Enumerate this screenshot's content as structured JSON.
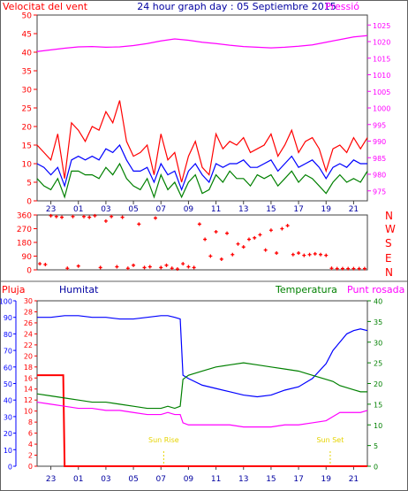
{
  "colors": {
    "frame": "#404040",
    "grid": "#606060",
    "wind": "#ff0000",
    "wind_avg": "#0000ff",
    "wind_alt": "#008000",
    "pressure": "#ff00ff",
    "direction": "#ff0000",
    "rain": "#ff0000",
    "humidity": "#0000ff",
    "temperature": "#008000",
    "dewpoint": "#ff00ff",
    "sun": "#e6d400",
    "title": "#0000a0"
  },
  "header": {
    "left_label": "Velocitat del vent",
    "title": "24 hour graph day : 05 Septiembre 2015",
    "right_label": "Pressió"
  },
  "panel3_labels": {
    "rain": "Pluja",
    "humidity": "Humitat",
    "temperature": "Temperatura",
    "dewpoint": "Punt rosada"
  },
  "direction_letters": [
    "N",
    "W",
    "S",
    "E",
    "N"
  ],
  "sun_markers": {
    "rise": "Sun Rise",
    "set": "Sun Set"
  },
  "chart_data": [
    {
      "type": "line",
      "x_unit": "hour of day",
      "x_ticks": [
        "23",
        "01",
        "03",
        "05",
        "07",
        "09",
        "11",
        "13",
        "15",
        "17",
        "19",
        "21",
        "23"
      ],
      "xlim": [
        22,
        46
      ],
      "left_axis": {
        "label": "Velocitat del vent",
        "ylim": [
          0,
          50
        ],
        "ticks": [
          0,
          5,
          10,
          15,
          20,
          25,
          30,
          35,
          40,
          45,
          50
        ]
      },
      "right_axis": {
        "label": "Pressió",
        "ylim": [
          972,
          1028
        ],
        "ticks": [
          975,
          980,
          985,
          990,
          995,
          1000,
          1005,
          1010,
          1015,
          1020,
          1025
        ]
      },
      "series": [
        {
          "name": "wind_gust",
          "axis": "left",
          "color": "#ff0000",
          "x": [
            22,
            22.5,
            23,
            23.5,
            24,
            24.5,
            25,
            25.5,
            26,
            26.5,
            27,
            27.5,
            28,
            28.5,
            29,
            29.5,
            30,
            30.5,
            31,
            31.5,
            32,
            32.5,
            33,
            33.5,
            34,
            34.5,
            35,
            35.5,
            36,
            36.5,
            37,
            37.5,
            38,
            38.5,
            39,
            39.5,
            40,
            40.5,
            41,
            41.5,
            42,
            42.5,
            43,
            43.5,
            44,
            44.5,
            45,
            45.5,
            46
          ],
          "y": [
            15,
            13,
            11,
            18,
            6,
            21,
            19,
            16,
            20,
            19,
            24,
            21,
            27,
            16,
            12,
            13,
            15,
            7,
            18,
            11,
            13,
            5,
            12,
            16,
            9,
            7,
            18,
            14,
            16,
            15,
            17,
            13,
            14,
            15,
            18,
            12,
            15,
            19,
            13,
            16,
            17,
            14,
            8,
            14,
            15,
            13,
            17,
            14,
            17
          ]
        },
        {
          "name": "wind_average",
          "axis": "left",
          "color": "#0000ff",
          "x": [
            22,
            22.5,
            23,
            23.5,
            24,
            24.5,
            25,
            25.5,
            26,
            26.5,
            27,
            27.5,
            28,
            28.5,
            29,
            29.5,
            30,
            30.5,
            31,
            31.5,
            32,
            32.5,
            33,
            33.5,
            34,
            34.5,
            35,
            35.5,
            36,
            36.5,
            37,
            37.5,
            38,
            38.5,
            39,
            39.5,
            40,
            40.5,
            41,
            41.5,
            42,
            42.5,
            43,
            43.5,
            44,
            44.5,
            45,
            45.5,
            46
          ],
          "y": [
            10,
            9,
            7,
            9,
            4,
            11,
            12,
            11,
            12,
            11,
            14,
            13,
            15,
            11,
            8,
            8,
            9,
            5,
            10,
            7,
            8,
            3,
            8,
            10,
            7,
            5,
            10,
            9,
            10,
            10,
            11,
            9,
            9,
            10,
            11,
            8,
            10,
            12,
            9,
            10,
            11,
            9,
            6,
            9,
            10,
            9,
            11,
            10,
            10
          ]
        },
        {
          "name": "wind_min",
          "axis": "left",
          "color": "#008000",
          "x": [
            22,
            22.5,
            23,
            23.5,
            24,
            24.5,
            25,
            25.5,
            26,
            26.5,
            27,
            27.5,
            28,
            28.5,
            29,
            29.5,
            30,
            30.5,
            31,
            31.5,
            32,
            32.5,
            33,
            33.5,
            34,
            34.5,
            35,
            35.5,
            36,
            36.5,
            37,
            37.5,
            38,
            38.5,
            39,
            39.5,
            40,
            40.5,
            41,
            41.5,
            42,
            42.5,
            43,
            43.5,
            44,
            44.5,
            45,
            45.5,
            46
          ],
          "y": [
            6,
            4,
            3,
            6,
            1,
            8,
            8,
            7,
            7,
            6,
            9,
            7,
            10,
            6,
            4,
            3,
            6,
            1,
            7,
            3,
            5,
            1,
            5,
            7,
            2,
            3,
            7,
            5,
            8,
            6,
            6,
            4,
            7,
            6,
            7,
            4,
            6,
            8,
            5,
            7,
            6,
            4,
            2,
            5,
            7,
            5,
            6,
            5,
            8
          ]
        },
        {
          "name": "pressure",
          "axis": "right",
          "color": "#ff00ff",
          "x": [
            22,
            23,
            24,
            25,
            26,
            27,
            28,
            29,
            30,
            31,
            32,
            33,
            34,
            35,
            36,
            37,
            38,
            39,
            40,
            41,
            42,
            43,
            44,
            45,
            46
          ],
          "y": [
            1017,
            1017.5,
            1018,
            1018.4,
            1018.5,
            1018.3,
            1018.4,
            1018.8,
            1019.4,
            1020.2,
            1020.8,
            1020.4,
            1019.8,
            1019.4,
            1018.9,
            1018.5,
            1018.3,
            1018.1,
            1018.3,
            1018.6,
            1019.0,
            1019.8,
            1020.6,
            1021.4,
            1021.8
          ]
        }
      ]
    },
    {
      "type": "scatter",
      "x_unit": "hour of day",
      "xlim": [
        22,
        46
      ],
      "ylim": [
        0,
        360
      ],
      "y_ticks": [
        0,
        90,
        180,
        270,
        360
      ],
      "series": [
        {
          "name": "wind_direction",
          "color": "#ff0000",
          "x": [
            22.2,
            22.6,
            23.0,
            23.4,
            23.8,
            24.2,
            24.6,
            25.0,
            25.4,
            25.8,
            26.2,
            26.6,
            27.0,
            27.4,
            27.8,
            28.2,
            28.6,
            29.0,
            29.4,
            29.8,
            30.2,
            30.6,
            31.0,
            31.4,
            31.8,
            32.2,
            32.6,
            33.0,
            33.4,
            33.8,
            34.2,
            34.6,
            35.0,
            35.4,
            35.8,
            36.2,
            36.6,
            37.0,
            37.4,
            37.8,
            38.2,
            38.6,
            39.0,
            39.4,
            39.8,
            40.2,
            40.6,
            41.0,
            41.4,
            41.8,
            42.2,
            42.6,
            43.0,
            43.4,
            43.8,
            44.2,
            44.6,
            45.0,
            45.4,
            45.8
          ],
          "y": [
            40,
            35,
            355,
            350,
            345,
            10,
            350,
            25,
            350,
            345,
            355,
            15,
            320,
            350,
            20,
            345,
            10,
            30,
            300,
            15,
            20,
            340,
            15,
            30,
            10,
            5,
            40,
            20,
            15,
            300,
            200,
            90,
            250,
            70,
            240,
            100,
            170,
            150,
            200,
            210,
            230,
            130,
            260,
            110,
            270,
            290,
            100,
            110,
            95,
            100,
            105,
            100,
            95,
            10,
            8,
            8,
            8,
            8,
            8,
            8
          ]
        }
      ]
    },
    {
      "type": "line",
      "x_unit": "hour of day",
      "x_ticks": [
        "23",
        "01",
        "03",
        "05",
        "07",
        "09",
        "11",
        "13",
        "15",
        "17",
        "19",
        "21",
        "23"
      ],
      "xlim": [
        22,
        46
      ],
      "left_axis_rain": {
        "label": "Pluja",
        "ylim": [
          0,
          30
        ],
        "ticks": [
          0,
          2,
          4,
          6,
          8,
          10,
          12,
          14,
          16,
          18,
          20,
          22,
          24,
          26,
          28,
          30
        ]
      },
      "left_axis_humidity": {
        "label": "Humitat",
        "ylim": [
          0,
          100
        ],
        "ticks": [
          0,
          10,
          20,
          30,
          40,
          50,
          60,
          70,
          80,
          90,
          100
        ]
      },
      "right_axis": {
        "label": "Temperatura / Punt rosada",
        "ylim": [
          0,
          40
        ],
        "ticks": [
          0,
          5,
          10,
          15,
          20,
          25,
          30,
          35,
          40
        ]
      },
      "sunrise_hour": 31.2,
      "sunset_hour": 43.3,
      "series": [
        {
          "name": "rain",
          "axis": "rain",
          "color": "#ff0000",
          "x": [
            22,
            23.9,
            24.0,
            46
          ],
          "y": [
            16.5,
            16.5,
            0,
            0
          ]
        },
        {
          "name": "humidity",
          "axis": "humidity",
          "color": "#0000ff",
          "x": [
            22,
            23,
            24,
            25,
            26,
            27,
            28,
            29,
            30,
            31,
            31.5,
            32,
            32.4,
            32.6,
            33,
            34,
            35,
            36,
            37,
            38,
            39,
            40,
            41,
            42,
            43,
            43.5,
            44,
            44.5,
            45,
            45.5,
            46
          ],
          "y": [
            90,
            90,
            91,
            91,
            90,
            90,
            89,
            89,
            90,
            91,
            91,
            90,
            89,
            55,
            53,
            49,
            47,
            45,
            43,
            42,
            43,
            46,
            48,
            53,
            62,
            70,
            75,
            80,
            82,
            83,
            82
          ]
        },
        {
          "name": "temperature",
          "axis": "right",
          "color": "#008000",
          "x": [
            22,
            23,
            24,
            25,
            26,
            27,
            28,
            29,
            30,
            31,
            31.5,
            32,
            32.4,
            32.6,
            33,
            34,
            35,
            36,
            37,
            38,
            39,
            40,
            41,
            42,
            43,
            43.5,
            44,
            44.5,
            45,
            45.5,
            46
          ],
          "y": [
            17.5,
            17,
            16.5,
            16,
            15.5,
            15.5,
            15,
            14.5,
            14,
            14,
            14.5,
            14,
            14.5,
            21,
            22,
            23,
            24,
            24.5,
            25,
            24.5,
            24,
            23.5,
            23,
            22,
            21,
            20.5,
            19.5,
            19,
            18.5,
            18,
            18
          ]
        },
        {
          "name": "dewpoint",
          "axis": "right",
          "color": "#ff00ff",
          "x": [
            22,
            23,
            24,
            25,
            26,
            27,
            28,
            29,
            30,
            31,
            31.5,
            32,
            32.4,
            32.6,
            33,
            34,
            35,
            36,
            37,
            38,
            39,
            40,
            41,
            42,
            43,
            43.5,
            44,
            44.5,
            45,
            45.5,
            46
          ],
          "y": [
            15.5,
            15,
            14.5,
            14,
            14,
            13.5,
            13.5,
            13,
            12.5,
            12.5,
            13,
            12.5,
            12.5,
            10.5,
            10,
            10,
            10,
            10,
            9.5,
            9.5,
            9.5,
            10,
            10,
            10.5,
            11,
            12,
            13,
            13,
            13,
            13,
            13.5
          ]
        }
      ]
    }
  ]
}
